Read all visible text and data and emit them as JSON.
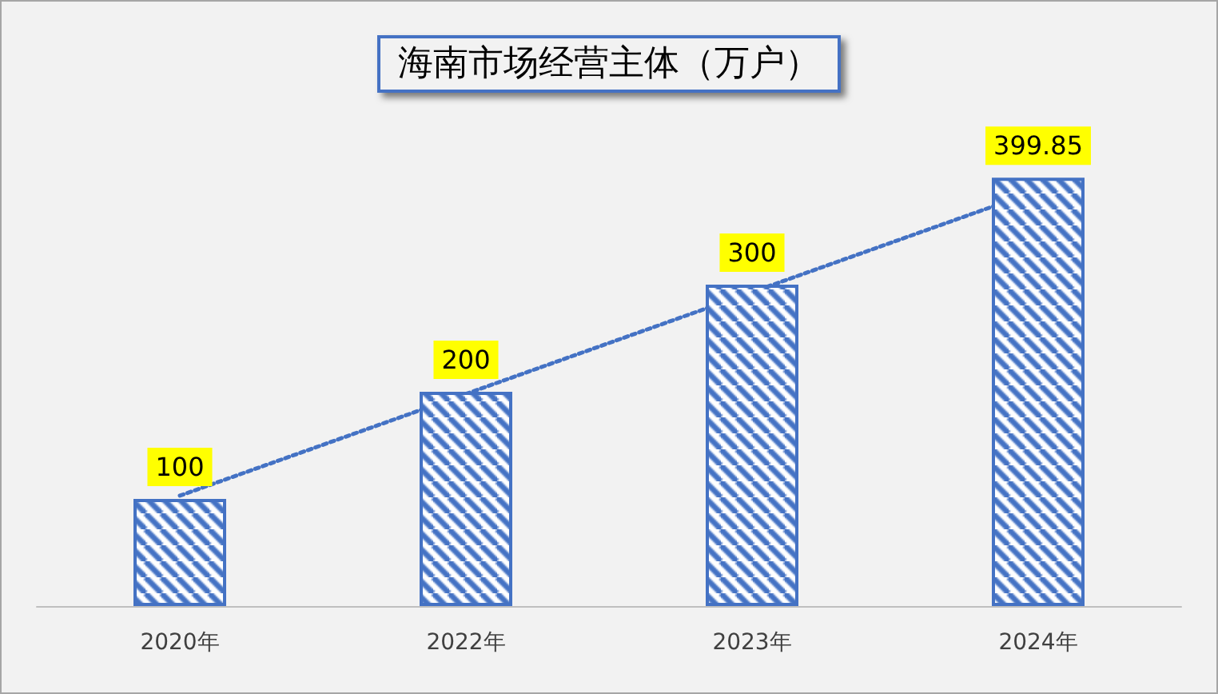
{
  "chart_data": {
    "type": "bar",
    "title": "海南市场经营主体（万户）",
    "categories": [
      "2020年",
      "2022年",
      "2023年",
      "2024年"
    ],
    "series": [
      {
        "color": "#4472c4",
        "values": [
          100,
          200,
          300,
          399.85
        ],
        "value_labels": [
          "100",
          "200",
          "300",
          "399.85"
        ]
      },
      {
        "type": "line",
        "color": "#4472c4",
        "values": [
          103,
          198,
          293,
          388
        ],
        "line_style": "dotted",
        "marker": "none"
      }
    ]
  }
}
